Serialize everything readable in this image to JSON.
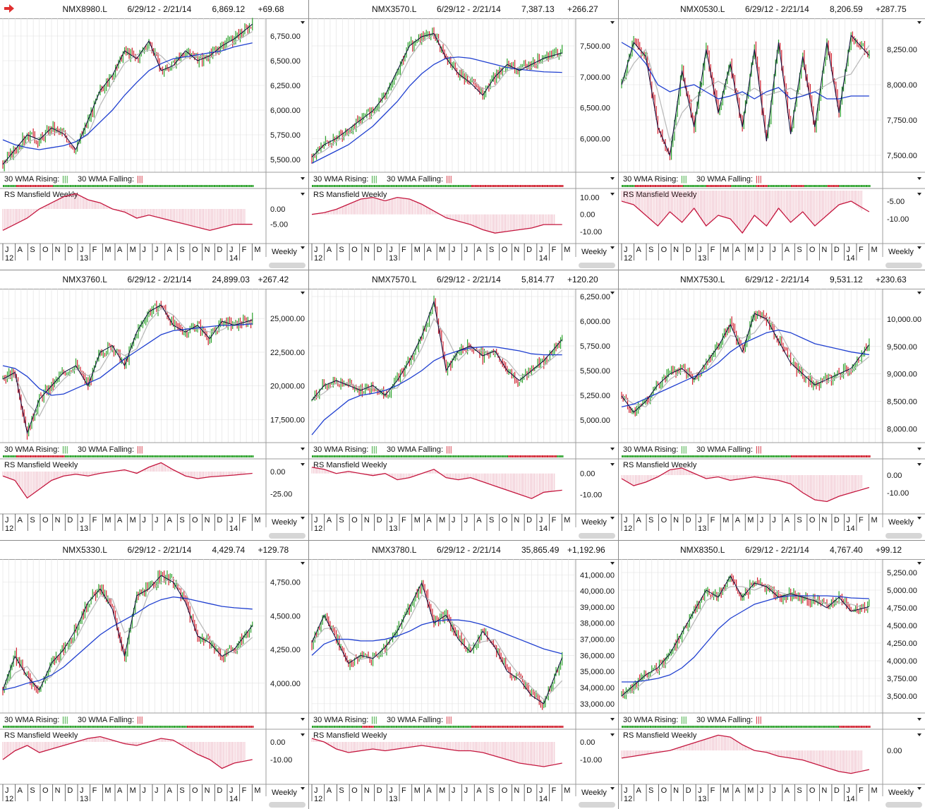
{
  "colors": {
    "up_bar": "#2aa12a",
    "down_bar": "#d0202e",
    "price_line": "#0a0a3a",
    "wma30": "#1f3fd0",
    "wma10": "#bbbbbb",
    "rs": "#c4163e",
    "rising_dot": "#2aa12a",
    "falling_dot": "#d0202e",
    "grid": "#e0e0e0",
    "header_arrow": "#e03030"
  },
  "icons": {
    "selected_panel": "right-arrow-icon",
    "menu": "triangle-down-icon"
  },
  "labels": {
    "wma_rising": "30 WMA Rising:",
    "wma_falling": "30 WMA Falling:",
    "rs_title": "RS Mansfield Weekly",
    "period": "Weekly",
    "months": [
      "J",
      "A",
      "S",
      "O",
      "N",
      "D",
      "J",
      "F",
      "M",
      "A",
      "M",
      "J",
      "J",
      "A",
      "S",
      "O",
      "N",
      "D",
      "J",
      "F",
      "M"
    ],
    "years": [
      "12",
      "13",
      "14"
    ]
  },
  "chart_data": [
    {
      "type": "line",
      "symbol": "NMX8980.L",
      "range": "6/29/12 - 2/21/14",
      "last": "6,869.12",
      "change": "+69.68",
      "yticks": [
        "6,750.00",
        "6,500.00",
        "6,250.00",
        "6,000.00",
        "5,750.00",
        "5,500.00"
      ],
      "ylim": [
        5400,
        6900
      ],
      "x": [
        0,
        4,
        8,
        12,
        16,
        20,
        24,
        28,
        32,
        36,
        40,
        44,
        48,
        52,
        56,
        60,
        64,
        68,
        72,
        76,
        82
      ],
      "close": [
        5450,
        5600,
        5750,
        5700,
        5820,
        5760,
        5600,
        5900,
        6200,
        6350,
        6600,
        6520,
        6700,
        6400,
        6450,
        6600,
        6500,
        6550,
        6650,
        6720,
        6870
      ],
      "wma30": [
        5700,
        5650,
        5620,
        5600,
        5620,
        5640,
        5680,
        5760,
        5880,
        6000,
        6150,
        6280,
        6400,
        6470,
        6520,
        6540,
        6560,
        6580,
        6600,
        6640,
        6680
      ],
      "rs_ticks": [
        "0.00",
        "-5.00"
      ],
      "rs_ylim": [
        -9,
        6
      ],
      "rs": [
        -7,
        -5,
        -3,
        0,
        2,
        4,
        5,
        3,
        2,
        0,
        -1,
        -3,
        -2,
        -3,
        -4,
        -5,
        -6,
        -7,
        -6,
        -5,
        -5
      ]
    },
    {
      "type": "line",
      "symbol": "NMX3570.L",
      "range": "6/29/12 - 2/21/14",
      "last": "7,387.13",
      "change": "+266.27",
      "yticks": [
        "7,500.00",
        "7,000.00",
        "6,500.00",
        "6,000.00"
      ],
      "ylim": [
        5500,
        7900
      ],
      "x": [
        0,
        4,
        8,
        12,
        16,
        20,
        24,
        28,
        32,
        36,
        40,
        44,
        48,
        52,
        56,
        60,
        64,
        68,
        72,
        76,
        82
      ],
      "close": [
        5700,
        5900,
        6000,
        6150,
        6300,
        6450,
        6700,
        7100,
        7500,
        7650,
        7700,
        7300,
        7050,
        6900,
        6700,
        7000,
        7200,
        7100,
        7200,
        7300,
        7387
      ],
      "wma30": [
        5600,
        5700,
        5800,
        5900,
        6050,
        6200,
        6400,
        6600,
        6850,
        7050,
        7200,
        7300,
        7320,
        7300,
        7250,
        7200,
        7150,
        7120,
        7100,
        7080,
        7070
      ],
      "rs_ticks": [
        "10.00",
        "0.00",
        "-10.00"
      ],
      "rs_ylim": [
        -13,
        14
      ],
      "rs": [
        0,
        1,
        3,
        6,
        9,
        10,
        8,
        10,
        9,
        6,
        2,
        -2,
        -4,
        -6,
        -9,
        -11,
        -10,
        -9,
        -8,
        -6,
        -6
      ]
    },
    {
      "type": "line",
      "symbol": "NMX0530.L",
      "range": "6/29/12 - 2/21/14",
      "last": "8,206.59",
      "change": "+287.75",
      "yticks": [
        "8,250.00",
        "8,000.00",
        "7,750.00",
        "7,500.00"
      ],
      "ylim": [
        7400,
        8450
      ],
      "x": [
        0,
        4,
        8,
        12,
        16,
        20,
        24,
        28,
        32,
        36,
        40,
        44,
        48,
        52,
        56,
        60,
        64,
        68,
        72,
        76,
        82
      ],
      "close": [
        8000,
        8300,
        8200,
        7700,
        7500,
        8100,
        7700,
        8250,
        7800,
        8150,
        7700,
        8250,
        7600,
        8300,
        7650,
        8200,
        7700,
        8300,
        7800,
        8350,
        8207
      ],
      "wma30": [
        8300,
        8250,
        8150,
        8000,
        7950,
        7980,
        8000,
        7950,
        7900,
        7920,
        7950,
        7900,
        7950,
        7980,
        7900,
        7920,
        7950,
        7900,
        7900,
        7920,
        7920
      ],
      "rs_ticks": [
        "-5.00",
        "-10.00"
      ],
      "rs_ylim": [
        -15,
        -2
      ],
      "rs": [
        -5,
        -6,
        -9,
        -12,
        -8,
        -11,
        -7,
        -12,
        -9,
        -10,
        -14,
        -9,
        -12,
        -7,
        -11,
        -8,
        -12,
        -9,
        -6,
        -5,
        -8
      ]
    },
    {
      "type": "line",
      "symbol": "NMX3760.L",
      "range": "6/29/12 - 2/21/14",
      "last": "24,899.03",
      "change": "+267.42",
      "yticks": [
        "25,000.00",
        "22,500.00",
        "20,000.00",
        "17,500.00"
      ],
      "ylim": [
        16000,
        27000
      ],
      "x": [
        0,
        4,
        8,
        12,
        16,
        20,
        24,
        28,
        32,
        36,
        40,
        44,
        48,
        52,
        56,
        60,
        64,
        68,
        72,
        76,
        82
      ],
      "close": [
        20500,
        21000,
        16500,
        19000,
        20000,
        21000,
        21500,
        20000,
        22500,
        23000,
        21500,
        24000,
        25500,
        26000,
        24500,
        24000,
        24500,
        23500,
        24800,
        24500,
        24900
      ],
      "wma30": [
        21500,
        21300,
        20700,
        19800,
        19300,
        19400,
        19800,
        20200,
        20600,
        21300,
        22000,
        22600,
        23200,
        23800,
        24100,
        24200,
        24300,
        24400,
        24500,
        24500,
        24600
      ],
      "rs_ticks": [
        "0.00",
        "-25.00"
      ],
      "rs_ylim": [
        -40,
        12
      ],
      "rs": [
        -5,
        -10,
        -30,
        -20,
        -10,
        -5,
        -3,
        -5,
        -2,
        0,
        2,
        -2,
        5,
        10,
        2,
        -5,
        -8,
        -6,
        -5,
        -4,
        -2
      ]
    },
    {
      "type": "line",
      "symbol": "NMX7570.L",
      "range": "6/29/12 - 2/21/14",
      "last": "5,814.77",
      "change": "+120.20",
      "yticks": [
        "6,250.00",
        "6,000.00",
        "5,750.00",
        "5,500.00",
        "5,250.00",
        "5,000.00"
      ],
      "ylim": [
        4800,
        6300
      ],
      "x": [
        0,
        4,
        8,
        12,
        16,
        20,
        24,
        28,
        32,
        36,
        40,
        44,
        48,
        52,
        56,
        60,
        64,
        68,
        72,
        76,
        82
      ],
      "close": [
        5200,
        5350,
        5400,
        5350,
        5300,
        5350,
        5250,
        5400,
        5600,
        5850,
        6200,
        5500,
        5700,
        5750,
        5650,
        5700,
        5500,
        5400,
        5500,
        5600,
        5815
      ],
      "wma30": [
        4850,
        5000,
        5100,
        5200,
        5250,
        5270,
        5300,
        5350,
        5420,
        5500,
        5600,
        5660,
        5700,
        5730,
        5740,
        5740,
        5720,
        5700,
        5670,
        5660,
        5660
      ],
      "rs_ticks": [
        "0.00",
        "-10.00"
      ],
      "rs_ylim": [
        -16,
        6
      ],
      "rs": [
        3,
        2,
        0,
        1,
        0,
        -1,
        0,
        -3,
        -2,
        0,
        2,
        -2,
        -3,
        -2,
        -4,
        -6,
        -8,
        -10,
        -12,
        -9,
        -8
      ]
    },
    {
      "type": "line",
      "symbol": "NMX7530.L",
      "range": "6/29/12 - 2/21/14",
      "last": "9,531.12",
      "change": "+230.63",
      "yticks": [
        "10,000.00",
        "9,500.00",
        "9,000.00",
        "8,500.00",
        "8,000.00"
      ],
      "ylim": [
        7800,
        10500
      ],
      "x": [
        0,
        4,
        8,
        12,
        16,
        20,
        24,
        28,
        32,
        36,
        40,
        44,
        48,
        52,
        56,
        60,
        64,
        68,
        72,
        76,
        82
      ],
      "close": [
        8600,
        8300,
        8500,
        8800,
        9000,
        9100,
        8900,
        9200,
        9500,
        9900,
        9400,
        10100,
        10000,
        9600,
        9200,
        9000,
        8800,
        8900,
        9000,
        9100,
        9531
      ],
      "wma30": [
        8400,
        8450,
        8550,
        8650,
        8750,
        8850,
        8950,
        9050,
        9200,
        9400,
        9550,
        9650,
        9750,
        9800,
        9750,
        9650,
        9550,
        9500,
        9450,
        9400,
        9350
      ],
      "rs_ticks": [
        "0.00",
        "-10.00"
      ],
      "rs_ylim": [
        -18,
        8
      ],
      "rs": [
        -2,
        -6,
        -4,
        -1,
        3,
        4,
        1,
        -2,
        -1,
        -3,
        -2,
        -1,
        -2,
        -3,
        -5,
        -10,
        -14,
        -15,
        -12,
        -10,
        -7
      ]
    },
    {
      "type": "line",
      "symbol": "NMX5330.L",
      "range": "6/29/12 - 2/21/14",
      "last": "4,429.74",
      "change": "+129.78",
      "yticks": [
        "4,750.00",
        "4,500.00",
        "4,250.00",
        "4,000.00"
      ],
      "ylim": [
        3800,
        4900
      ],
      "x": [
        0,
        4,
        8,
        12,
        16,
        20,
        24,
        28,
        32,
        36,
        40,
        44,
        48,
        52,
        56,
        60,
        64,
        68,
        72,
        76,
        82
      ],
      "close": [
        3950,
        4200,
        4050,
        3950,
        4150,
        4250,
        4400,
        4600,
        4700,
        4550,
        4200,
        4650,
        4700,
        4800,
        4750,
        4600,
        4350,
        4300,
        4200,
        4250,
        4430
      ],
      "wma30": [
        3950,
        3970,
        4000,
        4020,
        4060,
        4120,
        4200,
        4280,
        4360,
        4420,
        4470,
        4520,
        4580,
        4620,
        4640,
        4630,
        4610,
        4590,
        4570,
        4560,
        4550
      ],
      "rs_ticks": [
        "0.00",
        "-10.00"
      ],
      "rs_ylim": [
        -20,
        6
      ],
      "rs": [
        -10,
        -5,
        -2,
        -6,
        -4,
        -2,
        0,
        2,
        3,
        1,
        -1,
        -2,
        0,
        2,
        1,
        -3,
        -7,
        -10,
        -15,
        -12,
        -10
      ]
    },
    {
      "type": "line",
      "symbol": "NMX3780.L",
      "range": "6/29/12 - 2/21/14",
      "last": "35,865.49",
      "change": "+1,192.96",
      "yticks": [
        "41,000.00",
        "40,000.00",
        "39,000.00",
        "38,000.00",
        "37,000.00",
        "36,000.00",
        "35,000.00",
        "34,000.00",
        "33,000.00"
      ],
      "ylim": [
        32600,
        41800
      ],
      "x": [
        0,
        4,
        8,
        12,
        16,
        20,
        24,
        28,
        32,
        36,
        40,
        44,
        48,
        52,
        56,
        60,
        64,
        68,
        72,
        76,
        82
      ],
      "close": [
        36800,
        38500,
        37000,
        35500,
        36000,
        35800,
        36500,
        37500,
        39000,
        40500,
        38000,
        38500,
        37000,
        36200,
        37500,
        36500,
        35000,
        34500,
        33500,
        33000,
        35865
      ],
      "wma30": [
        36000,
        36700,
        37000,
        37000,
        36900,
        36900,
        37000,
        37200,
        37500,
        37900,
        38100,
        38200,
        38200,
        38100,
        37900,
        37600,
        37300,
        37000,
        36700,
        36400,
        36100
      ],
      "rs_ticks": [
        "0.00",
        "-10.00"
      ],
      "rs_ylim": [
        -20,
        6
      ],
      "rs": [
        2,
        0,
        -4,
        -6,
        -5,
        -4,
        -5,
        -4,
        -3,
        -2,
        -3,
        -4,
        -5,
        -5,
        -6,
        -8,
        -10,
        -12,
        -13,
        -14,
        -12
      ]
    },
    {
      "type": "line",
      "symbol": "NMX8350.L",
      "range": "6/29/12 - 2/21/14",
      "last": "4,767.40",
      "change": "+99.12",
      "yticks": [
        "5,250.00",
        "5,000.00",
        "4,750.00",
        "4,500.00",
        "4,250.00",
        "4,000.00",
        "3,750.00",
        "3,500.00"
      ],
      "ylim": [
        3300,
        5400
      ],
      "x": [
        0,
        4,
        8,
        12,
        16,
        20,
        24,
        28,
        32,
        36,
        40,
        44,
        48,
        52,
        56,
        60,
        64,
        68,
        72,
        76,
        82
      ],
      "close": [
        3500,
        3650,
        3800,
        3900,
        4100,
        4400,
        4700,
        5000,
        4900,
        5200,
        4900,
        5100,
        5050,
        4900,
        4950,
        4900,
        4850,
        4750,
        4900,
        4700,
        4767
      ],
      "wma30": [
        3700,
        3700,
        3720,
        3750,
        3800,
        3900,
        4050,
        4250,
        4450,
        4600,
        4700,
        4800,
        4850,
        4900,
        4920,
        4920,
        4920,
        4920,
        4910,
        4890,
        4880
      ],
      "rs_ticks": [
        "0.00"
      ],
      "rs_ylim": [
        -14,
        10
      ],
      "rs": [
        -4,
        -3,
        -2,
        -1,
        0,
        2,
        4,
        6,
        8,
        7,
        3,
        0,
        -1,
        -3,
        -4,
        -5,
        -7,
        -9,
        -11,
        -12,
        -10
      ]
    }
  ]
}
